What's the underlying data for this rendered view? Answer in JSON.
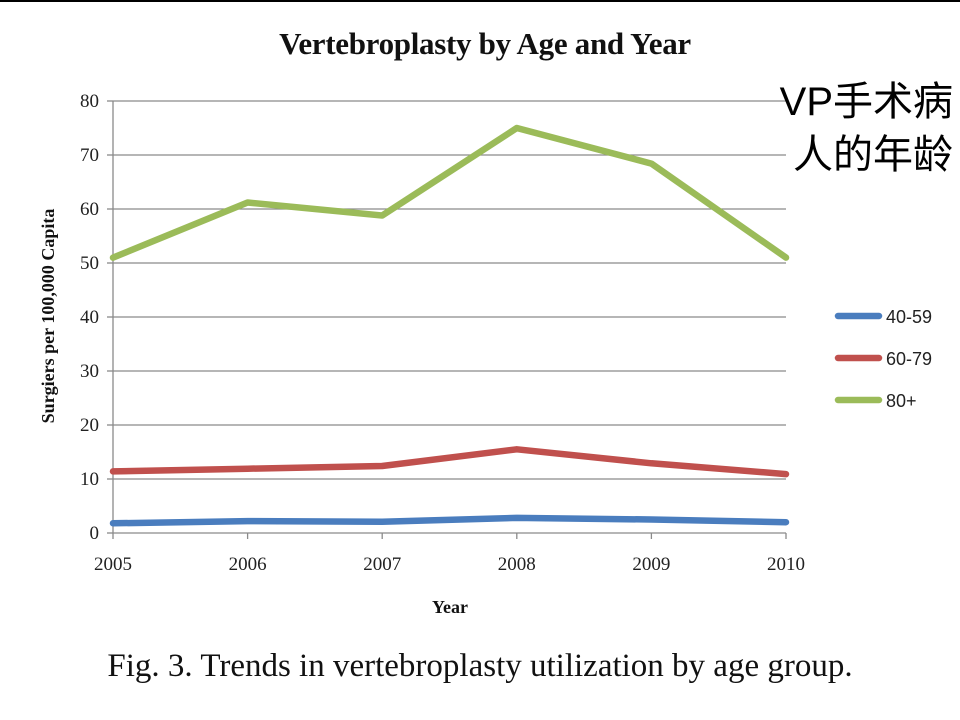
{
  "slide": {
    "annotation_line1": "VP手术病",
    "annotation_line2": "人的年龄",
    "caption": "Fig. 3.  Trends  in vertebroplasty utilization by age group."
  },
  "chart_data": {
    "type": "line",
    "title": "Vertebroplasty by Age and Year",
    "xlabel": "Year",
    "ylabel": "Surgiers per 100,000 Capita",
    "categories": [
      "2005",
      "2006",
      "2007",
      "2008",
      "2009",
      "2010"
    ],
    "ylim": [
      0,
      80
    ],
    "yticks": [
      0,
      10,
      20,
      30,
      40,
      50,
      60,
      70,
      80
    ],
    "grid": true,
    "legend_position": "right",
    "series": [
      {
        "name": "40-59",
        "color": "#4a7dbe",
        "values": [
          1.8,
          2.2,
          2.1,
          2.8,
          2.5,
          2.0
        ]
      },
      {
        "name": "60-79",
        "color": "#c0504d",
        "values": [
          11.4,
          11.9,
          12.4,
          15.5,
          12.9,
          10.9
        ]
      },
      {
        "name": "80+",
        "color": "#9bbb59",
        "values": [
          51.0,
          61.2,
          58.8,
          75.0,
          68.4,
          51.0
        ]
      }
    ]
  }
}
